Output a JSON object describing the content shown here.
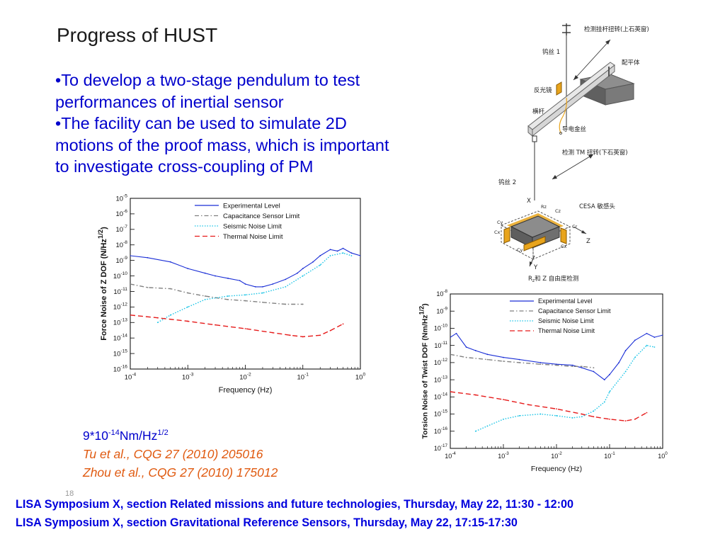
{
  "slide": {
    "title": "Progress of HUST",
    "bullets": [
      "•To develop a two-stage pendulum to test\nperformances of inertial sensor",
      "•The facility can be used to simulate 2D\nmotions of the proof mass, which is important\nto investigate cross-coupling of PM"
    ],
    "units_base": "9*10",
    "units_exp": "-14",
    "units_mid": "Nm/Hz",
    "units_exp2": "1/2",
    "references": [
      "Tu et al., CQG 27 (2010) 205016",
      "Zhou et al., CQG 27 (2010) 175012"
    ],
    "page_number": "18",
    "footer": [
      "LISA Symposium X, section Related missions and future technologies, Thursday, May 22, 11:30 - 12:00",
      "LISA Symposium X, section Gravitational Reference Sensors, Thursday, May 22, 17:15-17:30"
    ]
  },
  "diagram": {
    "labels": {
      "top": "检测挂杆扭转(上石英窗)",
      "wire1": "钨丝 1",
      "counterweight": "配平体",
      "mirror": "反光镜",
      "beam": "横杆",
      "gold_wire": "导电金丝",
      "tm_torsion": "检测 TM 扭转(下石英窗)",
      "wire2": "钨丝 2",
      "cesa": "CESA 敏感头",
      "bottom": "R",
      "bottom_sub": "z",
      "bottom_rest": "和 Z 自由度检测",
      "axis_x": "X",
      "axis_y": "Y",
      "axis_z": "Z",
      "rz": "Rz",
      "cx1": "Cx",
      "cx2": "Cx",
      "cy1": "Cy",
      "cy2": "Cy",
      "cz": "Cz",
      "cr": "Cr"
    },
    "colors": {
      "gold": "#e8a41c",
      "gray_block": "#707070"
    }
  },
  "chart_data": [
    {
      "type": "line",
      "title": "",
      "xlabel": "Frequency (Hz)",
      "ylabel": "Force Noise of Z DOF (N/Hz",
      "ylabel_sup": "1/2",
      "ylabel_end": ")",
      "x_scale": "log",
      "y_scale": "log",
      "xlim": [
        0.0001,
        1
      ],
      "ylim": [
        1e-16,
        1e-05
      ],
      "x_ticks": [
        {
          "b": "10",
          "e": "-4"
        },
        {
          "b": "10",
          "e": "-3"
        },
        {
          "b": "10",
          "e": "-2"
        },
        {
          "b": "10",
          "e": "-1"
        },
        {
          "b": "10",
          "e": "0"
        }
      ],
      "y_ticks": [
        {
          "b": "10",
          "e": "-5"
        },
        {
          "b": "10",
          "e": "-6"
        },
        {
          "b": "10",
          "e": "-7"
        },
        {
          "b": "10",
          "e": "-8"
        },
        {
          "b": "10",
          "e": "-9"
        },
        {
          "b": "10",
          "e": "-10"
        },
        {
          "b": "10",
          "e": "-11"
        },
        {
          "b": "10",
          "e": "-12"
        },
        {
          "b": "10",
          "e": "-13"
        },
        {
          "b": "10",
          "e": "-14"
        },
        {
          "b": "10",
          "e": "-15"
        },
        {
          "b": "10",
          "e": "-16"
        }
      ],
      "legend_position": "top-right",
      "series": [
        {
          "name": "Experimental Level",
          "color": "#1a2ed6",
          "style": "solid",
          "x": [
            0.0001,
            0.0002,
            0.0005,
            0.001,
            0.002,
            0.003,
            0.005,
            0.008,
            0.01,
            0.015,
            0.02,
            0.03,
            0.05,
            0.08,
            0.1,
            0.15,
            0.2,
            0.3,
            0.4,
            0.5,
            0.7,
            1
          ],
          "y": [
            2e-09,
            1.5e-09,
            8e-10,
            3e-10,
            1.5e-10,
            1e-10,
            7e-11,
            5e-11,
            3e-11,
            2e-11,
            2e-11,
            3e-11,
            6e-11,
            1.5e-10,
            3e-10,
            8e-10,
            2e-09,
            5e-09,
            4e-09,
            6e-09,
            3e-09,
            2e-09
          ]
        },
        {
          "name": "Capacitance Sensor Limit",
          "color": "#808080",
          "style": "dashdot",
          "x": [
            0.0001,
            0.0002,
            0.0005,
            0.001,
            0.002,
            0.005,
            0.01,
            0.02,
            0.05,
            0.1
          ],
          "y": [
            3e-11,
            1.8e-11,
            1.5e-11,
            8e-12,
            5e-12,
            3e-12,
            2.5e-12,
            2e-12,
            1.5e-12,
            1.5e-12
          ]
        },
        {
          "name": "Seismic Noise Limit",
          "color": "#19c4e6",
          "style": "dotted",
          "x": [
            0.0003,
            0.0005,
            0.001,
            0.002,
            0.005,
            0.01,
            0.02,
            0.05,
            0.1,
            0.2,
            0.3,
            0.5,
            0.7
          ],
          "y": [
            1e-13,
            3e-13,
            1e-12,
            3e-12,
            5e-12,
            6e-12,
            8e-12,
            2e-11,
            1e-10,
            5e-10,
            2e-09,
            3e-09,
            2e-09
          ]
        },
        {
          "name": "Thermal Noise Limit",
          "color": "#e61a1a",
          "style": "dashed",
          "x": [
            0.0001,
            0.0003,
            0.001,
            0.003,
            0.01,
            0.03,
            0.06,
            0.1,
            0.2,
            0.3,
            0.5
          ],
          "y": [
            3e-13,
            2e-13,
            1.2e-13,
            7e-14,
            4e-14,
            2.2e-14,
            1.5e-14,
            1.2e-14,
            1.5e-14,
            3e-14,
            8e-14
          ]
        }
      ]
    },
    {
      "type": "line",
      "title": "",
      "xlabel": "Frequency (Hz)",
      "ylabel": "Torsion Noise  of Twist DOF (Nm/Hz",
      "ylabel_sup": "1/2",
      "ylabel_end": ")",
      "x_scale": "log",
      "y_scale": "log",
      "xlim": [
        0.0001,
        1
      ],
      "ylim": [
        1e-17,
        1e-08
      ],
      "x_ticks": [
        {
          "b": "10",
          "e": "-4"
        },
        {
          "b": "10",
          "e": "-3"
        },
        {
          "b": "10",
          "e": "-2"
        },
        {
          "b": "10",
          "e": "-1"
        },
        {
          "b": "10",
          "e": "0"
        }
      ],
      "y_ticks": [
        {
          "b": "10",
          "e": "-8"
        },
        {
          "b": "10",
          "e": "-9"
        },
        {
          "b": "10",
          "e": "-10"
        },
        {
          "b": "10",
          "e": "-11"
        },
        {
          "b": "10",
          "e": "-12"
        },
        {
          "b": "10",
          "e": "-13"
        },
        {
          "b": "10",
          "e": "-14"
        },
        {
          "b": "10",
          "e": "-15"
        },
        {
          "b": "10",
          "e": "-16"
        },
        {
          "b": "10",
          "e": "-17"
        }
      ],
      "legend_position": "top-right",
      "series": [
        {
          "name": "Experimental Level",
          "color": "#1a2ed6",
          "style": "solid",
          "x": [
            0.0001,
            0.00013,
            0.0002,
            0.0003,
            0.0005,
            0.001,
            0.002,
            0.005,
            0.01,
            0.02,
            0.03,
            0.05,
            0.08,
            0.1,
            0.15,
            0.2,
            0.3,
            0.5,
            0.7,
            1
          ],
          "y": [
            3e-11,
            5e-11,
            8e-12,
            5e-12,
            3e-12,
            2e-12,
            1.5e-12,
            1e-12,
            8e-13,
            7e-13,
            5e-13,
            3e-13,
            1e-13,
            2e-13,
            1e-12,
            5e-12,
            2e-11,
            5e-11,
            3e-11,
            4e-11
          ]
        },
        {
          "name": "Capacitance Sensor Limit",
          "color": "#808080",
          "style": "dashdot",
          "x": [
            0.0001,
            0.0002,
            0.0005,
            0.001,
            0.002,
            0.005,
            0.01,
            0.02,
            0.03,
            0.05
          ],
          "y": [
            3e-12,
            2e-12,
            1.5e-12,
            1.2e-12,
            1e-12,
            8e-13,
            7e-13,
            6e-13,
            6e-13,
            5e-13
          ]
        },
        {
          "name": "Seismic Noise Limit",
          "color": "#19c4e6",
          "style": "dotted",
          "x": [
            0.0003,
            0.0005,
            0.001,
            0.002,
            0.005,
            0.01,
            0.02,
            0.03,
            0.05,
            0.08,
            0.1,
            0.2,
            0.3,
            0.5,
            0.7
          ],
          "y": [
            1e-16,
            2e-16,
            5e-16,
            8e-16,
            1e-15,
            8e-16,
            6e-16,
            7e-16,
            1.5e-15,
            5e-15,
            2e-14,
            3e-13,
            2e-12,
            1e-11,
            8e-12
          ]
        },
        {
          "name": "Thermal Noise Limit",
          "color": "#e61a1a",
          "style": "dashed",
          "x": [
            0.0001,
            0.0003,
            0.001,
            0.003,
            0.01,
            0.03,
            0.05,
            0.1,
            0.2,
            0.3,
            0.5
          ],
          "y": [
            2e-14,
            1.3e-14,
            7e-15,
            3.5e-15,
            2e-15,
            1e-15,
            7e-16,
            5e-16,
            4e-16,
            5e-16,
            1.2e-15
          ]
        }
      ]
    }
  ]
}
